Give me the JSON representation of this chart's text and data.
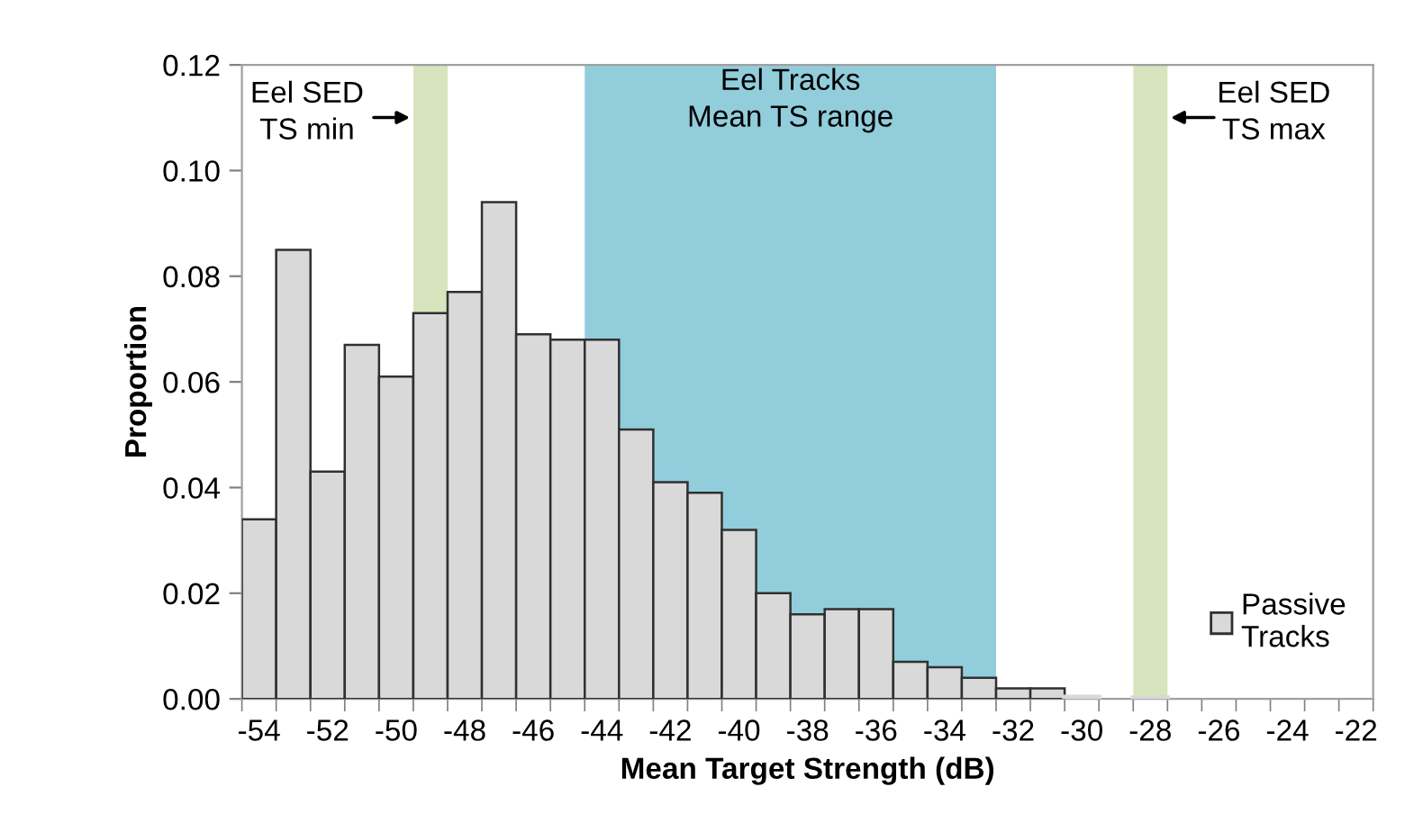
{
  "chart_data": {
    "type": "histogram",
    "xlabel": "Mean Target Strength (dB)",
    "ylabel": "Proportion",
    "bins": [
      -54.5,
      -53.5,
      -52.5,
      -51.5,
      -50.5,
      -49.5,
      -48.5,
      -47.5,
      -46.5,
      -45.5,
      -44.5,
      -43.5,
      -42.5,
      -41.5,
      -40.5,
      -39.5,
      -38.5,
      -37.5,
      -36.5,
      -35.5,
      -34.5,
      -33.5,
      -32.5,
      -31.5,
      -30.5,
      -29.5,
      -28.5,
      -27.5,
      -26.5,
      -25.5,
      -24.5,
      -23.5,
      -22.5,
      -21.5
    ],
    "series": [
      {
        "name": "Passive Tracks",
        "color": "#d9d9d9",
        "values": [
          0.034,
          0.085,
          0.043,
          0.067,
          0.061,
          0.073,
          0.077,
          0.094,
          0.069,
          0.068,
          0.068,
          0.051,
          0.041,
          0.039,
          0.032,
          0.02,
          0.016,
          0.017,
          0.017,
          0.007,
          0.006,
          0.004,
          0.002,
          0.002,
          0.0003,
          0,
          0.0002,
          0,
          0,
          0,
          0,
          0,
          0
        ]
      }
    ],
    "xlim": [
      -54.5,
      -21.5
    ],
    "xticks": [
      -54,
      -52,
      -50,
      -48,
      -46,
      -44,
      -42,
      -40,
      -38,
      -36,
      -34,
      -32,
      -30,
      -28,
      -26,
      -24,
      -22
    ],
    "ylim": [
      0,
      0.12
    ],
    "yticks": [
      {
        "value": 0,
        "label": "0.00"
      },
      {
        "value": 0.02,
        "label": "0.02"
      },
      {
        "value": 0.04,
        "label": "0.04"
      },
      {
        "value": 0.06,
        "label": "0.06"
      },
      {
        "value": 0.08,
        "label": "0.08"
      },
      {
        "value": 0.1,
        "label": "0.10"
      },
      {
        "value": 0.12,
        "label": "0.12"
      }
    ],
    "bands": [
      {
        "axis": "x",
        "from": -49.5,
        "to": -48.5,
        "label": "Eel SED\nTS min",
        "color": "#d7e4bd"
      },
      {
        "axis": "x",
        "from": -44.5,
        "to": -32.5,
        "label": "Eel Tracks\nMean TS range",
        "color": "#92cddc"
      },
      {
        "axis": "x",
        "from": -28.5,
        "to": -27.5,
        "label": "Eel SED\nTS max",
        "color": "#d7e4bd"
      }
    ],
    "grid": false,
    "legend": "right"
  }
}
